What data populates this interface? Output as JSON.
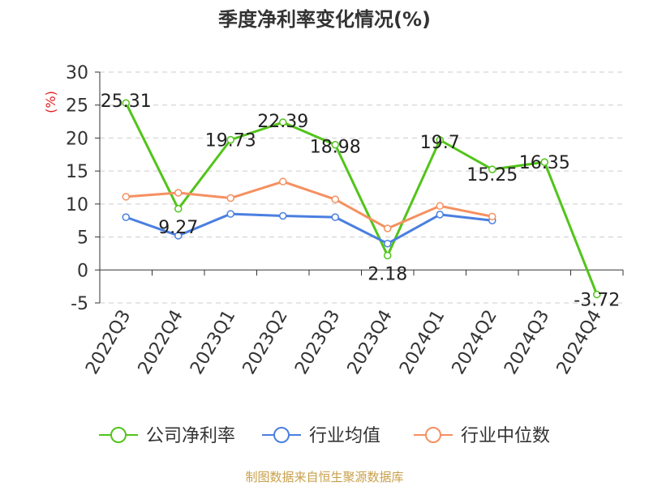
{
  "chart_data": {
    "type": "line",
    "title": "季度净利率变化情况(%)",
    "ylabel": "(%)",
    "categories": [
      "2022Q3",
      "2022Q4",
      "2023Q1",
      "2023Q2",
      "2023Q3",
      "2023Q4",
      "2024Q1",
      "2024Q2",
      "2024Q3",
      "2024Q4"
    ],
    "yticks": [
      -5,
      0,
      5,
      10,
      15,
      20,
      25,
      30
    ],
    "ylim": [
      -5,
      30
    ],
    "grid": true,
    "legend_position": "bottom",
    "series": [
      {
        "name": "公司净利率",
        "color": "#52c41a",
        "values": [
          25.31,
          9.27,
          19.73,
          22.39,
          18.98,
          2.18,
          19.7,
          15.25,
          16.35,
          -3.72
        ],
        "labels": [
          "25.31",
          "9.27",
          "19.73",
          "22.39",
          "18.98",
          "2.18",
          "19.7",
          "15.25",
          "16.35",
          "-3.72"
        ]
      },
      {
        "name": "行业均值",
        "color": "#4a7fe0",
        "values": [
          8.0,
          5.2,
          8.5,
          8.2,
          8.0,
          4.0,
          8.4,
          7.5,
          null,
          null
        ]
      },
      {
        "name": "行业中位数",
        "color": "#f59060",
        "values": [
          11.1,
          11.7,
          10.9,
          13.4,
          10.7,
          6.3,
          9.7,
          8.1,
          null,
          null
        ]
      }
    ]
  },
  "source": "制图数据来自恒生聚源数据库"
}
